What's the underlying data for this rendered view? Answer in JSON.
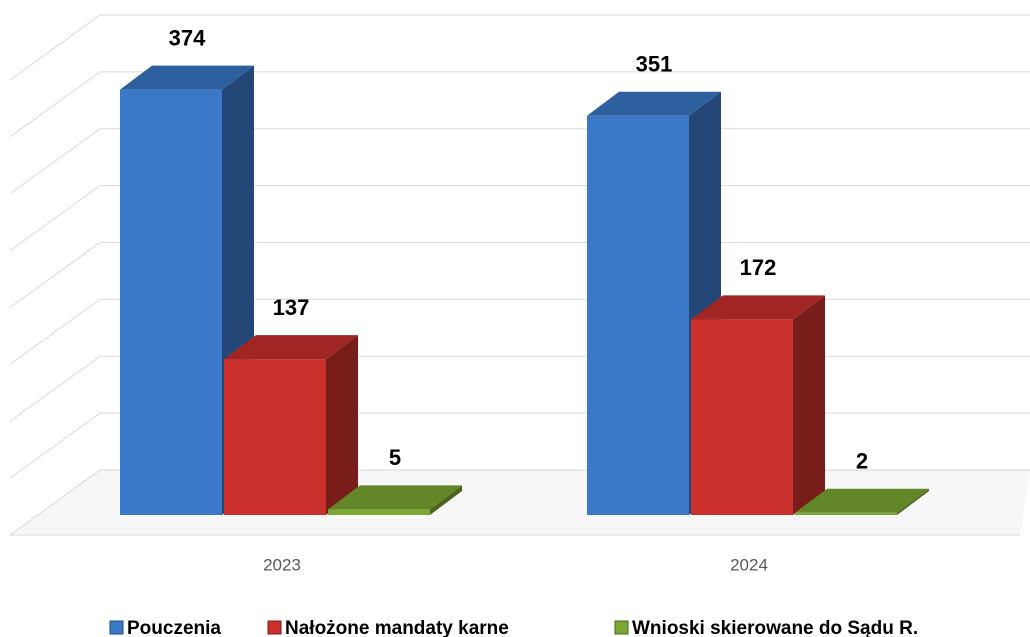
{
  "chart_data": {
    "type": "bar3d",
    "categories": [
      "2023",
      "2024"
    ],
    "series": [
      {
        "name": "Pouczenia",
        "color": "#3a78c8",
        "values": [
          374,
          351
        ]
      },
      {
        "name": "Nałożone mandaty karne",
        "color": "#c9302c",
        "values": [
          137,
          172
        ]
      },
      {
        "name": "Wnioski skierowane do Sądu R.",
        "color": "#7aa832",
        "values": [
          5,
          2
        ]
      }
    ],
    "ylim": [
      0,
      400
    ],
    "yticks": [
      0,
      50,
      100,
      150,
      200,
      250,
      300,
      350,
      400
    ],
    "grid": true,
    "legend": "bottom"
  }
}
